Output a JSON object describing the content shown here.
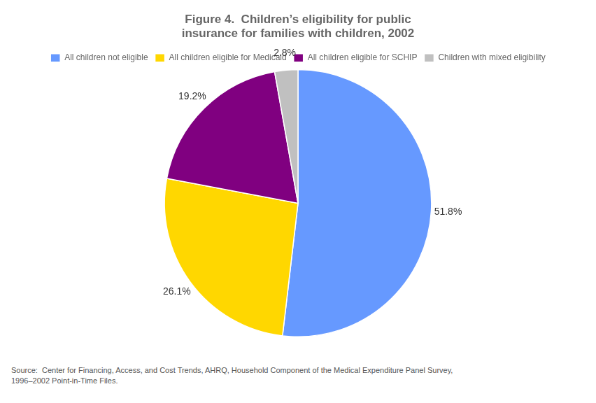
{
  "chart_data": {
    "type": "pie",
    "title": [
      "Figure 4.  Children’s eligibility for public",
      "insurance for families with children, 2002"
    ],
    "categories": [
      "All children not eligible",
      "All children eligible for Medicaid",
      "All children eligible for SCHIP",
      "Children with mixed eligibility"
    ],
    "values": [
      51.8,
      26.1,
      19.2,
      2.8
    ],
    "value_labels": [
      "51.8%",
      "26.1%",
      "19.2%",
      "2.8%"
    ],
    "data_labels": true,
    "colors": [
      "#6699FF",
      "#FFD700",
      "#800080",
      "#C0C0C0"
    ],
    "legend": "top",
    "annotations": [
      "Source:  Center for Financing, Access, and Cost Trends, AHRQ, Household Component of the Medical Expenditure Panel Survey,\n1996–2002 Point-in-Time Files."
    ]
  }
}
